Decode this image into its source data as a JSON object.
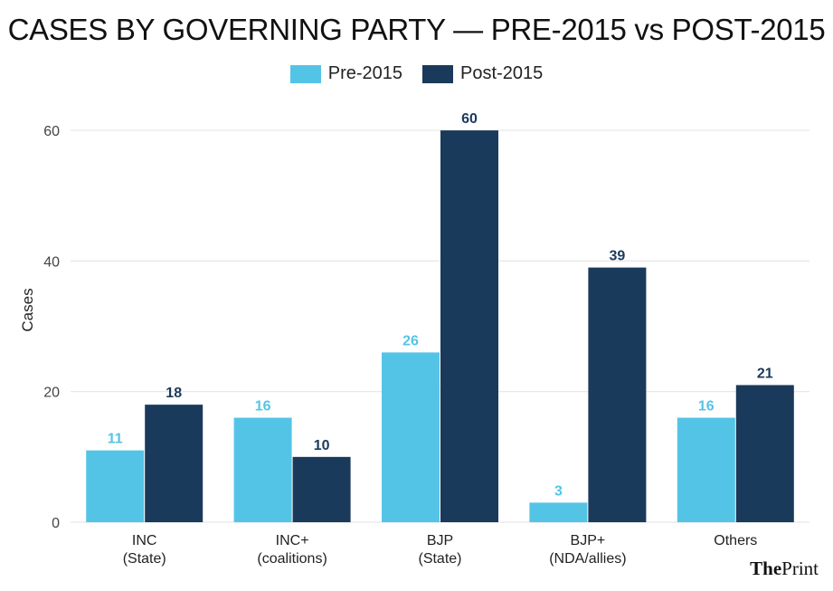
{
  "chart_data": {
    "type": "bar",
    "title": "CASES BY GOVERNING PARTY — PRE-2015 vs POST-2015",
    "ylabel": "Cases",
    "xlabel": "",
    "ylim": [
      0,
      65
    ],
    "yticks": [
      0,
      20,
      40,
      60
    ],
    "grid": true,
    "legend_position": "top",
    "categories": [
      [
        "INC",
        "(State)"
      ],
      [
        "INC+",
        "(coalitions)"
      ],
      [
        "BJP",
        "(State)"
      ],
      [
        "BJP+",
        "(NDA/allies)"
      ],
      [
        "Others"
      ]
    ],
    "series": [
      {
        "name": "Pre-2015",
        "color": "#54c4e6",
        "label_color": "#54c4e6",
        "values": [
          11,
          16,
          26,
          3,
          16
        ]
      },
      {
        "name": "Post-2015",
        "color": "#1a3a5c",
        "label_color": "#1a3a5c",
        "values": [
          18,
          10,
          60,
          39,
          21
        ]
      }
    ]
  },
  "brand": {
    "part1": "The",
    "part2": "Print"
  }
}
